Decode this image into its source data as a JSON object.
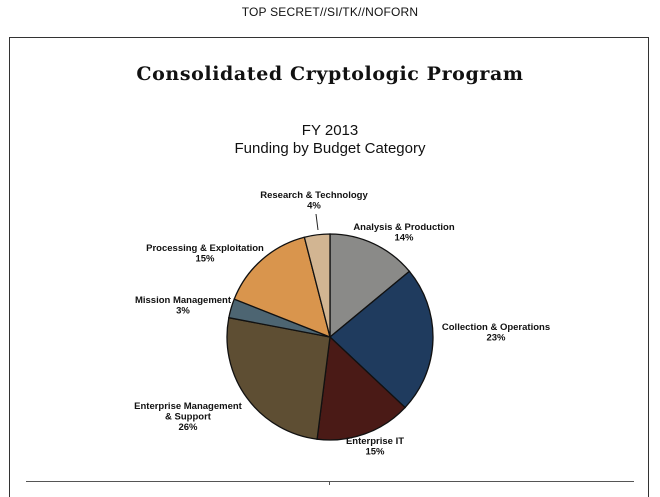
{
  "classification": "TOP SECRET//SI/TK//NOFORN",
  "program_title": "Consolidated Cryptologic Program",
  "chart_data": {
    "type": "pie",
    "title": "FY 2013",
    "subtitle": "Funding by Budget Category",
    "unit": "%",
    "slices": [
      {
        "label": "Analysis & Production",
        "value": 14,
        "display": "14%",
        "color": "#8a8a88"
      },
      {
        "label": "Collection & Operations",
        "value": 23,
        "display": "23%",
        "color": "#1f3b5e"
      },
      {
        "label": "Enterprise IT",
        "value": 15,
        "display": "15%",
        "color": "#4a1a16"
      },
      {
        "label": "Enterprise Management & Support",
        "value": 26,
        "display": "26%",
        "color": "#5e4e33"
      },
      {
        "label": "Mission Management",
        "value": 3,
        "display": "3%",
        "color": "#4d6572"
      },
      {
        "label": "Processing & Exploitation",
        "value": 15,
        "display": "15%",
        "color": "#d9954d"
      },
      {
        "label": "Research & Technology",
        "value": 4,
        "display": "4%",
        "color": "#d2b592"
      }
    ]
  }
}
